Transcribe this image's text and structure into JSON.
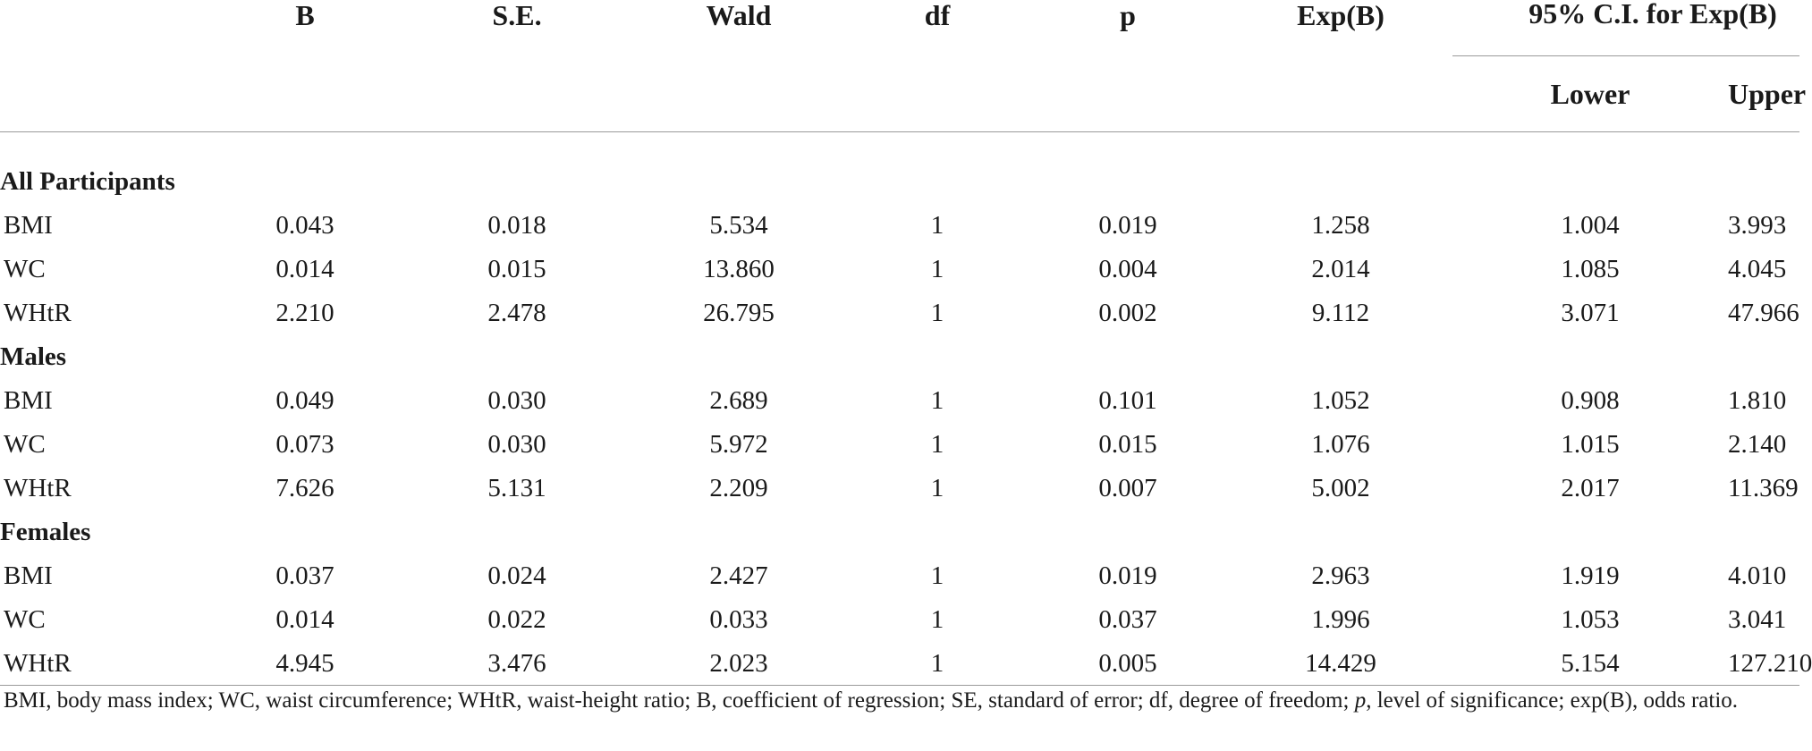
{
  "header": {
    "col_blank": "",
    "B": "B",
    "SE": "S.E.",
    "Wald": "Wald",
    "df": "df",
    "p": "p",
    "ExpB": "Exp(B)",
    "ci_group": "95% C.I. for Exp(B)",
    "lower": "Lower",
    "upper": "Upper"
  },
  "groups": [
    {
      "label": "All Participants",
      "rows": [
        {
          "name": "BMI",
          "B": "0.043",
          "SE": "0.018",
          "Wald": "5.534",
          "df": "1",
          "p": "0.019",
          "ExpB": "1.258",
          "lower": "1.004",
          "upper": "3.993"
        },
        {
          "name": "WC",
          "B": "0.014",
          "SE": "0.015",
          "Wald": "13.860",
          "df": "1",
          "p": "0.004",
          "ExpB": "2.014",
          "lower": "1.085",
          "upper": "4.045"
        },
        {
          "name": "WHtR",
          "B": "2.210",
          "SE": "2.478",
          "Wald": "26.795",
          "df": "1",
          "p": "0.002",
          "ExpB": "9.112",
          "lower": "3.071",
          "upper": "47.966"
        }
      ]
    },
    {
      "label": "Males",
      "rows": [
        {
          "name": "BMI",
          "B": "0.049",
          "SE": "0.030",
          "Wald": "2.689",
          "df": "1",
          "p": "0.101",
          "ExpB": "1.052",
          "lower": "0.908",
          "upper": "1.810"
        },
        {
          "name": "WC",
          "B": "0.073",
          "SE": "0.030",
          "Wald": "5.972",
          "df": "1",
          "p": "0.015",
          "ExpB": "1.076",
          "lower": "1.015",
          "upper": "2.140"
        },
        {
          "name": "WHtR",
          "B": "7.626",
          "SE": "5.131",
          "Wald": "2.209",
          "df": "1",
          "p": "0.007",
          "ExpB": "5.002",
          "lower": "2.017",
          "upper": "11.369"
        }
      ]
    },
    {
      "label": "Females",
      "rows": [
        {
          "name": "BMI",
          "B": "0.037",
          "SE": "0.024",
          "Wald": "2.427",
          "df": "1",
          "p": "0.019",
          "ExpB": "2.963",
          "lower": "1.919",
          "upper": "4.010"
        },
        {
          "name": "WC",
          "B": "0.014",
          "SE": "0.022",
          "Wald": "0.033",
          "df": "1",
          "p": "0.037",
          "ExpB": "1.996",
          "lower": "1.053",
          "upper": "3.041"
        },
        {
          "name": "WHtR",
          "B": "4.945",
          "SE": "3.476",
          "Wald": "2.023",
          "df": "1",
          "p": "0.005",
          "ExpB": "14.429",
          "lower": "5.154",
          "upper": "127.210"
        }
      ]
    }
  ],
  "footnote": {
    "part1": "BMI, body mass index; WC, waist circumference; WHtR, waist-height ratio; B, coefficient of regression; SE, standard of error; df, degree of freedom; ",
    "p_italic": "p",
    "part2": ", level of significance; exp(B), odds ratio."
  }
}
